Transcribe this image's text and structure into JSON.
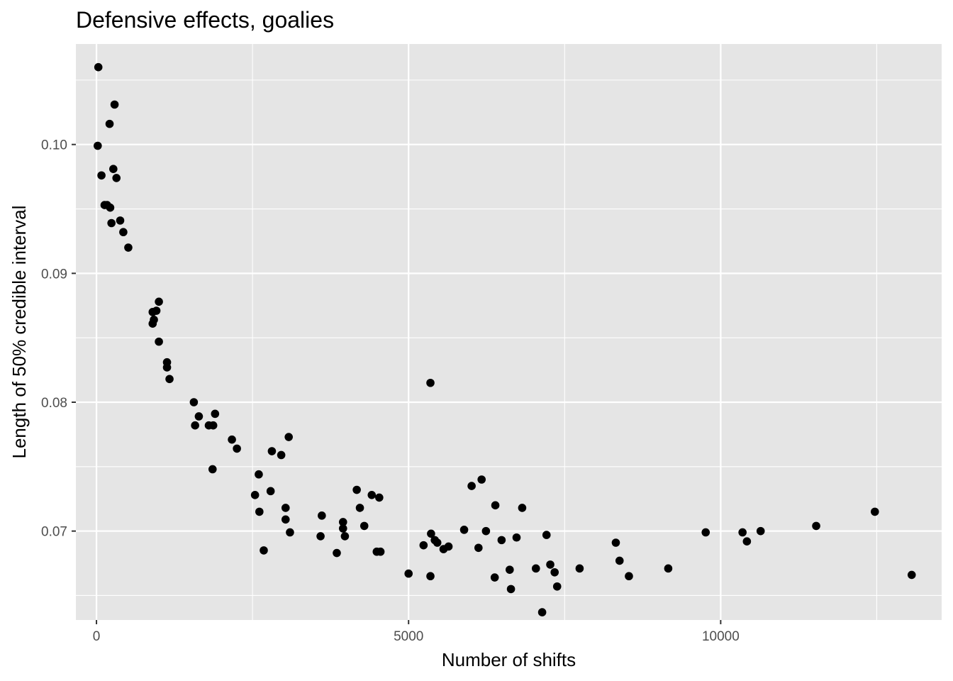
{
  "chart_data": {
    "type": "scatter",
    "title": "Defensive effects, goalies",
    "xlabel": "Number of shifts",
    "ylabel": "Length of 50% credible interval",
    "xlim": [
      -330,
      13540
    ],
    "ylim": [
      0.0631,
      0.1078
    ],
    "x_ticks": [
      0,
      5000,
      10000
    ],
    "x_tick_labels": [
      "0",
      "5000",
      "10000"
    ],
    "y_ticks": [
      0.07,
      0.08,
      0.09,
      0.1
    ],
    "y_tick_labels": [
      "0.07",
      "0.08",
      "0.09",
      "0.10"
    ],
    "grid": true,
    "legend": "none",
    "colors": {
      "panel": "#e5e5e5",
      "grid": "#ffffff",
      "point": "#000000",
      "tick": "#333333"
    },
    "points": [
      {
        "x": 30,
        "y": 0.106
      },
      {
        "x": 20,
        "y": 0.0999
      },
      {
        "x": 290,
        "y": 0.1031
      },
      {
        "x": 210,
        "y": 0.1016
      },
      {
        "x": 80,
        "y": 0.0976
      },
      {
        "x": 270,
        "y": 0.0981
      },
      {
        "x": 320,
        "y": 0.0974
      },
      {
        "x": 130,
        "y": 0.0953
      },
      {
        "x": 170,
        "y": 0.0953
      },
      {
        "x": 220,
        "y": 0.0951
      },
      {
        "x": 380,
        "y": 0.0941
      },
      {
        "x": 240,
        "y": 0.0939
      },
      {
        "x": 430,
        "y": 0.0932
      },
      {
        "x": 510,
        "y": 0.092
      },
      {
        "x": 1000,
        "y": 0.0878
      },
      {
        "x": 900,
        "y": 0.087
      },
      {
        "x": 960,
        "y": 0.0871
      },
      {
        "x": 920,
        "y": 0.0864
      },
      {
        "x": 900,
        "y": 0.0861
      },
      {
        "x": 1000,
        "y": 0.0847
      },
      {
        "x": 1130,
        "y": 0.0831
      },
      {
        "x": 1130,
        "y": 0.0827
      },
      {
        "x": 1170,
        "y": 0.0818
      },
      {
        "x": 1560,
        "y": 0.08
      },
      {
        "x": 1640,
        "y": 0.0789
      },
      {
        "x": 1900,
        "y": 0.0791
      },
      {
        "x": 1580,
        "y": 0.0782
      },
      {
        "x": 1800,
        "y": 0.0782
      },
      {
        "x": 1870,
        "y": 0.0782
      },
      {
        "x": 2170,
        "y": 0.0771
      },
      {
        "x": 2250,
        "y": 0.0764
      },
      {
        "x": 1860,
        "y": 0.0748
      },
      {
        "x": 2810,
        "y": 0.0762
      },
      {
        "x": 2960,
        "y": 0.0759
      },
      {
        "x": 3080,
        "y": 0.0773
      },
      {
        "x": 2600,
        "y": 0.0744
      },
      {
        "x": 2540,
        "y": 0.0728
      },
      {
        "x": 2790,
        "y": 0.0731
      },
      {
        "x": 2610,
        "y": 0.0715
      },
      {
        "x": 3030,
        "y": 0.0718
      },
      {
        "x": 3030,
        "y": 0.0709
      },
      {
        "x": 3100,
        "y": 0.0699
      },
      {
        "x": 2680,
        "y": 0.0685
      },
      {
        "x": 3590,
        "y": 0.0696
      },
      {
        "x": 3610,
        "y": 0.0712
      },
      {
        "x": 3850,
        "y": 0.0683
      },
      {
        "x": 3950,
        "y": 0.0707
      },
      {
        "x": 3950,
        "y": 0.0702
      },
      {
        "x": 3980,
        "y": 0.0696
      },
      {
        "x": 4170,
        "y": 0.0732
      },
      {
        "x": 4220,
        "y": 0.0718
      },
      {
        "x": 4290,
        "y": 0.0704
      },
      {
        "x": 4410,
        "y": 0.0728
      },
      {
        "x": 4530,
        "y": 0.0726
      },
      {
        "x": 4490,
        "y": 0.0684
      },
      {
        "x": 4550,
        "y": 0.0684
      },
      {
        "x": 5350,
        "y": 0.0815
      },
      {
        "x": 5000,
        "y": 0.0667
      },
      {
        "x": 5350,
        "y": 0.0665
      },
      {
        "x": 5240,
        "y": 0.0689
      },
      {
        "x": 5360,
        "y": 0.0698
      },
      {
        "x": 5420,
        "y": 0.0693
      },
      {
        "x": 5460,
        "y": 0.0691
      },
      {
        "x": 5560,
        "y": 0.0686
      },
      {
        "x": 5640,
        "y": 0.0688
      },
      {
        "x": 5890,
        "y": 0.0701
      },
      {
        "x": 6010,
        "y": 0.0735
      },
      {
        "x": 6170,
        "y": 0.074
      },
      {
        "x": 6120,
        "y": 0.0687
      },
      {
        "x": 6240,
        "y": 0.07
      },
      {
        "x": 6390,
        "y": 0.072
      },
      {
        "x": 6380,
        "y": 0.0664
      },
      {
        "x": 6490,
        "y": 0.0693
      },
      {
        "x": 6620,
        "y": 0.067
      },
      {
        "x": 6640,
        "y": 0.0655
      },
      {
        "x": 6730,
        "y": 0.0695
      },
      {
        "x": 6820,
        "y": 0.0718
      },
      {
        "x": 7040,
        "y": 0.0671
      },
      {
        "x": 7140,
        "y": 0.0637
      },
      {
        "x": 7210,
        "y": 0.0697
      },
      {
        "x": 7270,
        "y": 0.0674
      },
      {
        "x": 7340,
        "y": 0.0668
      },
      {
        "x": 7380,
        "y": 0.0657
      },
      {
        "x": 7740,
        "y": 0.0671
      },
      {
        "x": 8320,
        "y": 0.0691
      },
      {
        "x": 8380,
        "y": 0.0677
      },
      {
        "x": 8530,
        "y": 0.0665
      },
      {
        "x": 9160,
        "y": 0.0671
      },
      {
        "x": 9760,
        "y": 0.0699
      },
      {
        "x": 10350,
        "y": 0.0699
      },
      {
        "x": 10420,
        "y": 0.0692
      },
      {
        "x": 10640,
        "y": 0.07
      },
      {
        "x": 11530,
        "y": 0.0704
      },
      {
        "x": 12470,
        "y": 0.0715
      },
      {
        "x": 13060,
        "y": 0.0666
      }
    ]
  }
}
